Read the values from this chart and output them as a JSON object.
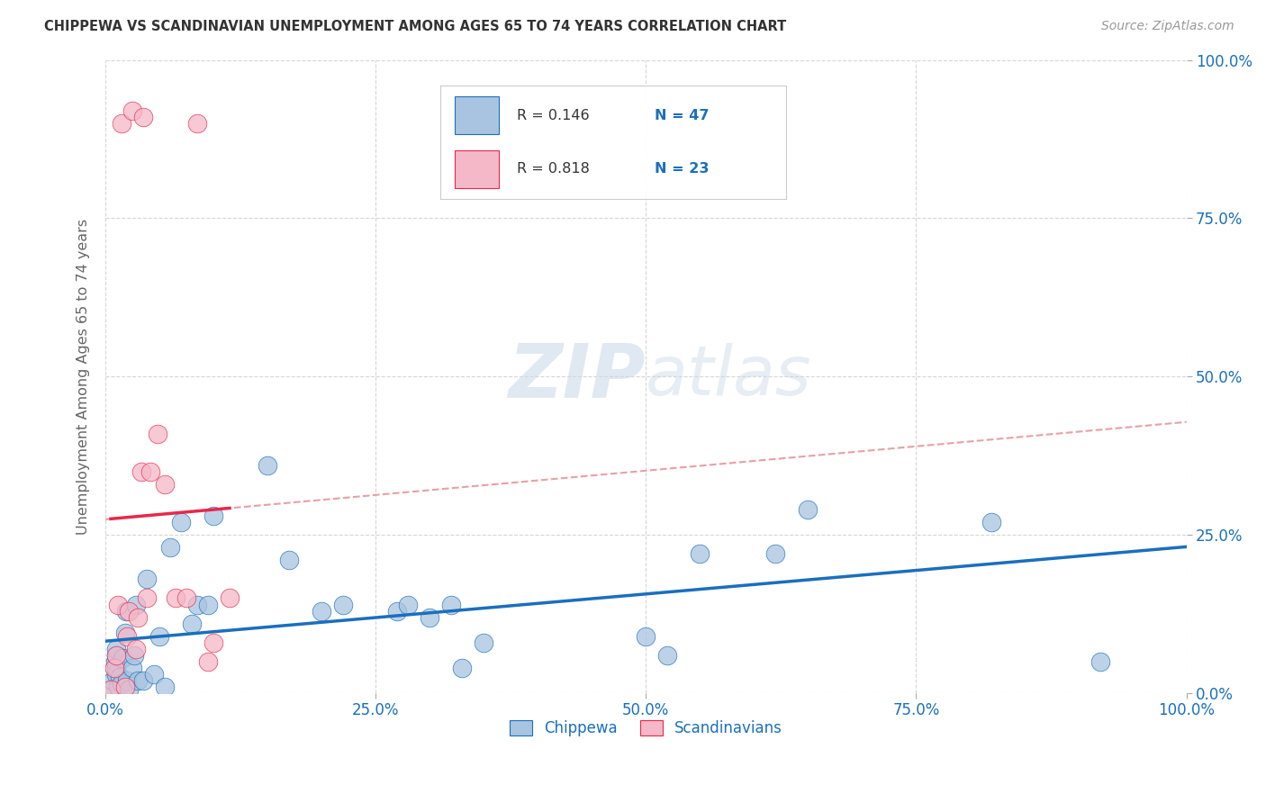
{
  "title": "CHIPPEWA VS SCANDINAVIAN UNEMPLOYMENT AMONG AGES 65 TO 74 YEARS CORRELATION CHART",
  "source": "Source: ZipAtlas.com",
  "ylabel": "Unemployment Among Ages 65 to 74 years",
  "xlim": [
    0.0,
    1.0
  ],
  "ylim": [
    0.0,
    1.0
  ],
  "xticks": [
    0.0,
    0.25,
    0.5,
    0.75,
    1.0
  ],
  "xticklabels": [
    "0.0%",
    "25.0%",
    "50.0%",
    "75.0%",
    "100.0%"
  ],
  "yticks": [
    0.0,
    0.25,
    0.5,
    0.75,
    1.0
  ],
  "yticklabels": [
    "0.0%",
    "25.0%",
    "50.0%",
    "75.0%",
    "100.0%"
  ],
  "chippewa_color": "#a8c4e0",
  "scandinavian_color": "#f4b8c8",
  "trend_chippewa_color": "#1a6fbd",
  "trend_scandinavian_color": "#e8284a",
  "trend_scandinavian_dashed_color": "#e8a0a8",
  "R_chippewa": 0.146,
  "N_chippewa": 47,
  "R_scandinavian": 0.818,
  "N_scandinavian": 23,
  "legend_color": "#1a6fbd",
  "watermark_zip": "ZIP",
  "watermark_atlas": "atlas",
  "chippewa_x": [
    0.005,
    0.007,
    0.009,
    0.01,
    0.01,
    0.01,
    0.01,
    0.012,
    0.013,
    0.015,
    0.016,
    0.018,
    0.019,
    0.02,
    0.022,
    0.025,
    0.027,
    0.028,
    0.03,
    0.035,
    0.038,
    0.045,
    0.05,
    0.055,
    0.06,
    0.07,
    0.08,
    0.085,
    0.095,
    0.1,
    0.15,
    0.17,
    0.2,
    0.22,
    0.27,
    0.28,
    0.3,
    0.32,
    0.33,
    0.35,
    0.5,
    0.52,
    0.55,
    0.62,
    0.65,
    0.82,
    0.92
  ],
  "chippewa_y": [
    0.005,
    0.02,
    0.05,
    0.03,
    0.06,
    0.04,
    0.07,
    0.01,
    0.025,
    0.015,
    0.055,
    0.095,
    0.13,
    0.02,
    0.005,
    0.04,
    0.06,
    0.14,
    0.02,
    0.02,
    0.18,
    0.03,
    0.09,
    0.01,
    0.23,
    0.27,
    0.11,
    0.14,
    0.14,
    0.28,
    0.36,
    0.21,
    0.13,
    0.14,
    0.13,
    0.14,
    0.12,
    0.14,
    0.04,
    0.08,
    0.09,
    0.06,
    0.22,
    0.22,
    0.29,
    0.27,
    0.05
  ],
  "scandinavian_x": [
    0.005,
    0.008,
    0.01,
    0.012,
    0.015,
    0.018,
    0.02,
    0.022,
    0.025,
    0.028,
    0.03,
    0.033,
    0.035,
    0.038,
    0.042,
    0.048,
    0.055,
    0.065,
    0.075,
    0.085,
    0.095,
    0.1,
    0.115
  ],
  "scandinavian_y": [
    0.005,
    0.04,
    0.06,
    0.14,
    0.9,
    0.01,
    0.09,
    0.13,
    0.92,
    0.07,
    0.12,
    0.35,
    0.91,
    0.15,
    0.35,
    0.41,
    0.33,
    0.15,
    0.15,
    0.9,
    0.05,
    0.08,
    0.15
  ]
}
